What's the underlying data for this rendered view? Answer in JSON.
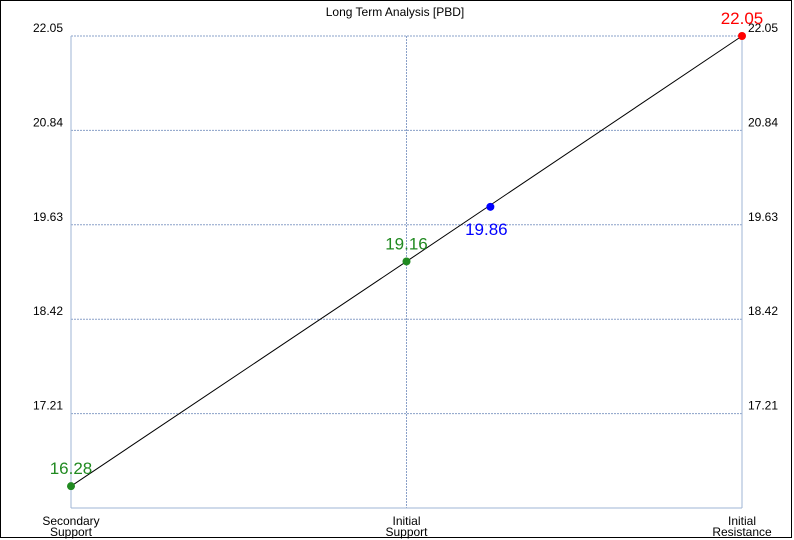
{
  "chart_data": {
    "type": "line",
    "title": "Long Term Analysis [PBD]",
    "categories": [
      "Secondary Support",
      "Initial Support",
      "Initial Resistance"
    ],
    "category_lines": [
      [
        "Secondary",
        "Support"
      ],
      [
        "Initial",
        "Support"
      ],
      [
        "Initial",
        "Resistance"
      ]
    ],
    "ylim": [
      16.0,
      22.05
    ],
    "yticks": [
      17.21,
      18.42,
      19.63,
      20.84,
      22.05
    ],
    "ytick_labels": [
      "17.21",
      "18.42",
      "19.63",
      "20.84",
      "22.05"
    ],
    "grid": true,
    "series": [
      {
        "values": [
          16.28,
          19.16,
          22.05
        ],
        "point_labels": [
          "16.28",
          "19.16",
          "22.05"
        ],
        "point_colors": [
          "#218a21",
          "#218a21",
          "#ff0000"
        ]
      }
    ],
    "current": {
      "value": 19.86,
      "label": "19.86",
      "color": "#0000ff",
      "x_fraction": 0.625
    },
    "colors": {
      "line": "#000000",
      "grid": "#8aa0c8",
      "axis": "#9fb6d6",
      "text": "#000000"
    }
  }
}
